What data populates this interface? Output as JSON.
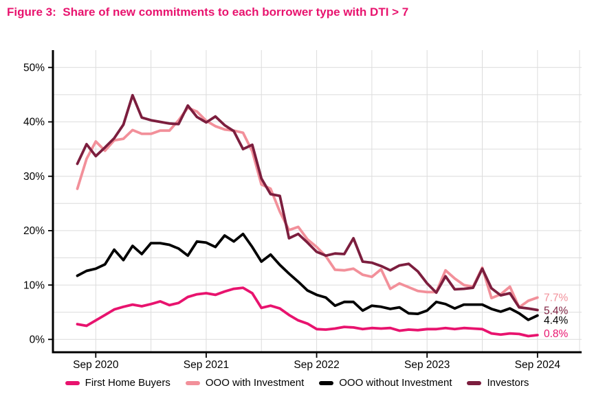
{
  "title": {
    "text": "Figure 3:  Share of new commitments to each borrower type with DTI > 7",
    "color": "#E8136E"
  },
  "colors": {
    "background": "#FFFFFF",
    "grid": "#DCDCDC",
    "axis": "#000000",
    "tick_label": "#000000"
  },
  "chart_data": {
    "type": "line",
    "x": [
      "2020-07",
      "2020-08",
      "2020-09",
      "2020-10",
      "2020-11",
      "2020-12",
      "2021-01",
      "2021-02",
      "2021-03",
      "2021-04",
      "2021-05",
      "2021-06",
      "2021-07",
      "2021-08",
      "2021-09",
      "2021-10",
      "2021-11",
      "2021-12",
      "2022-01",
      "2022-02",
      "2022-03",
      "2022-04",
      "2022-05",
      "2022-06",
      "2022-07",
      "2022-08",
      "2022-09",
      "2022-10",
      "2022-11",
      "2022-12",
      "2023-01",
      "2023-02",
      "2023-03",
      "2023-04",
      "2023-05",
      "2023-06",
      "2023-07",
      "2023-08",
      "2023-09",
      "2023-10",
      "2023-11",
      "2023-12",
      "2024-01",
      "2024-02",
      "2024-03",
      "2024-04",
      "2024-05",
      "2024-06",
      "2024-07",
      "2024-08",
      "2024-09"
    ],
    "x_tick_labels": [
      "Sep 2020",
      "Sep 2021",
      "Sep 2022",
      "Sep 2023",
      "Sep 2024"
    ],
    "x_tick_indices": [
      2,
      14,
      26,
      38,
      50
    ],
    "x_minor_grid_indices": [
      8,
      20,
      32,
      44
    ],
    "y_ticks": [
      0,
      10,
      20,
      30,
      40,
      50
    ],
    "y_minor_step": 5,
    "y_tick_suffix": "%",
    "ylim": [
      -2.4,
      52.9
    ],
    "grid": true,
    "legend_position": "bottom",
    "series": [
      {
        "name": "First Home Buyers",
        "color": "#E8136E",
        "end_label": "0.8%",
        "end_label_dy": -2,
        "values": [
          2.8,
          2.5,
          3.5,
          4.5,
          5.5,
          6.0,
          6.4,
          6.1,
          6.5,
          7.0,
          6.3,
          6.7,
          7.8,
          8.3,
          8.5,
          8.2,
          8.8,
          9.3,
          9.5,
          8.5,
          5.8,
          6.2,
          5.7,
          4.5,
          3.5,
          2.9,
          1.9,
          1.8,
          2.0,
          2.3,
          2.2,
          1.9,
          2.1,
          2.0,
          2.1,
          1.6,
          1.8,
          1.7,
          1.9,
          1.9,
          2.1,
          1.9,
          2.1,
          2.0,
          1.9,
          1.1,
          0.9,
          1.1,
          1.0,
          0.6,
          0.8
        ]
      },
      {
        "name": "OOO with Investment",
        "color": "#F2909A",
        "end_label": "7.7%",
        "end_label_dy": 0,
        "values": [
          27.7,
          33.2,
          36.4,
          34.7,
          36.6,
          36.9,
          38.5,
          37.8,
          37.8,
          38.4,
          38.4,
          40.3,
          42.6,
          41.9,
          40.2,
          39.2,
          38.6,
          38.4,
          38.0,
          34.6,
          28.5,
          27.7,
          23.5,
          20.1,
          20.7,
          18.4,
          17.0,
          15.3,
          12.8,
          12.7,
          13.0,
          11.9,
          11.5,
          12.9,
          9.3,
          10.3,
          9.6,
          8.9,
          8.7,
          8.7,
          12.7,
          11.2,
          10.0,
          9.7,
          13.2,
          7.6,
          8.3,
          9.7,
          5.9,
          7.1,
          7.7
        ]
      },
      {
        "name": "OOO without Investment",
        "color": "#000000",
        "end_label": "4.4%",
        "end_label_dy": 7,
        "values": [
          11.7,
          12.6,
          13.0,
          13.8,
          16.5,
          14.6,
          17.2,
          15.7,
          17.7,
          17.7,
          17.4,
          16.7,
          15.4,
          18.0,
          17.8,
          17.0,
          19.1,
          18.0,
          19.4,
          17.0,
          14.3,
          15.6,
          13.7,
          12.1,
          10.6,
          9.0,
          8.2,
          7.7,
          6.2,
          6.9,
          6.9,
          5.3,
          6.2,
          6.0,
          5.6,
          5.9,
          4.8,
          4.7,
          5.3,
          6.9,
          6.5,
          5.7,
          6.4,
          6.4,
          6.4,
          5.6,
          5.1,
          5.7,
          4.8,
          3.6,
          4.4
        ]
      },
      {
        "name": "Investors",
        "color": "#7C1E3E",
        "end_label": "5.4%",
        "end_label_dy": 1,
        "values": [
          32.3,
          35.9,
          33.7,
          35.3,
          37.0,
          39.5,
          44.9,
          40.8,
          40.3,
          40.0,
          39.7,
          39.6,
          43.0,
          40.9,
          39.9,
          41.0,
          39.4,
          38.3,
          35.0,
          35.8,
          29.6,
          26.7,
          26.4,
          18.6,
          19.4,
          17.8,
          16.1,
          15.4,
          15.8,
          15.7,
          18.6,
          14.3,
          14.1,
          13.5,
          12.7,
          13.6,
          13.9,
          12.5,
          10.3,
          8.6,
          11.6,
          9.2,
          9.3,
          9.5,
          13.0,
          9.4,
          8.1,
          8.5,
          5.9,
          5.7,
          5.4
        ]
      }
    ]
  }
}
